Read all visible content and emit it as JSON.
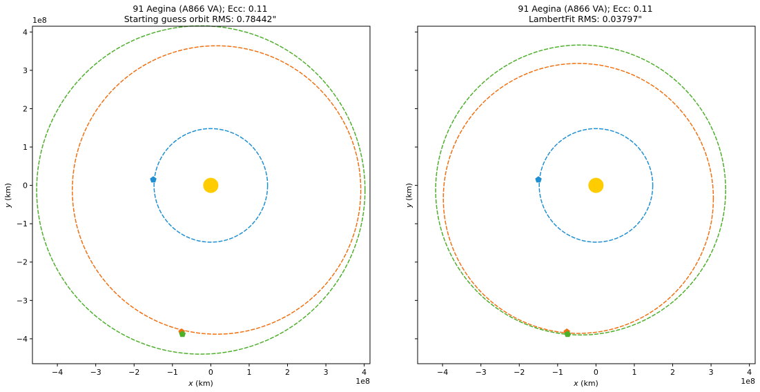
{
  "chart_data": [
    {
      "type": "scatter",
      "title": "91 Aegina (A866 VA); Ecc: 0.11",
      "subtitle": "Starting guess orbit RMS: 0.78442\"",
      "xlabel_var": "x",
      "xlabel_unit": " (km)",
      "ylabel_var": "y",
      "ylabel_unit": " (km)",
      "x_scale_label": "1e8",
      "y_scale_label": "1e8",
      "xlim": [
        -4.65,
        4.15
      ],
      "ylim": [
        -4.65,
        4.15
      ],
      "xticks": [
        -4,
        -3,
        -2,
        -1,
        0,
        1,
        2,
        3,
        4
      ],
      "yticks": [
        -4,
        -3,
        -2,
        -1,
        0,
        1,
        2,
        3,
        4
      ],
      "xtick_labels": [
        "−4",
        "−3",
        "−2",
        "−1",
        "0",
        "1",
        "2",
        "3",
        "4"
      ],
      "ytick_labels": [
        "−4",
        "−3",
        "−2",
        "−1",
        "0",
        "1",
        "2",
        "3",
        "4"
      ],
      "show_ytick_labels": true,
      "grid": false,
      "sun": {
        "x": 0,
        "y": 0,
        "color": "#ffcc00"
      },
      "orbits": [
        {
          "cx": 0,
          "cy": 0,
          "rx": 1.48,
          "ry": 1.48,
          "color": "#1f8fd1",
          "dash": "6,2"
        },
        {
          "cx": -0.26,
          "cy": -0.12,
          "rx": 4.28,
          "ry": 4.28,
          "color": "#4daf2a",
          "dash": "6,2"
        },
        {
          "cx": 0.15,
          "cy": -0.12,
          "rx": 3.76,
          "ry": 3.76,
          "color": "#f07012",
          "dash": "6,2"
        }
      ],
      "markers": [
        {
          "x": -1.5,
          "y": 0.15,
          "color": "#1f8fd1"
        },
        {
          "x": -0.76,
          "y": -3.82,
          "color": "#f07012"
        },
        {
          "x": -0.74,
          "y": -3.88,
          "color": "#4daf2a"
        }
      ]
    },
    {
      "type": "scatter",
      "title": "91 Aegina (A866 VA); Ecc: 0.11",
      "subtitle": "LambertFit RMS: 0.03797\"",
      "xlabel_var": "x",
      "xlabel_unit": " (km)",
      "ylabel_var": "y",
      "ylabel_unit": " (km)",
      "x_scale_label": "1e8",
      "y_scale_label": "",
      "xlim": [
        -4.65,
        4.15
      ],
      "ylim": [
        -4.65,
        4.15
      ],
      "xticks": [
        -4,
        -3,
        -2,
        -1,
        0,
        1,
        2,
        3,
        4
      ],
      "yticks": [
        -4,
        -3,
        -2,
        -1,
        0,
        1,
        2,
        3,
        4
      ],
      "xtick_labels": [
        "−4",
        "−3",
        "−2",
        "−1",
        "0",
        "1",
        "2",
        "3",
        "4"
      ],
      "ytick_labels": [],
      "show_ytick_labels": false,
      "grid": false,
      "sun": {
        "x": 0,
        "y": 0,
        "color": "#ffcc00"
      },
      "orbits": [
        {
          "cx": 0,
          "cy": 0,
          "rx": 1.48,
          "ry": 1.48,
          "color": "#1f8fd1",
          "dash": "6,2"
        },
        {
          "cx": -0.4,
          "cy": -0.12,
          "rx": 3.78,
          "ry": 3.78,
          "color": "#4daf2a",
          "dash": "6,2"
        },
        {
          "cx": -0.46,
          "cy": -0.34,
          "rx": 3.52,
          "ry": 3.52,
          "color": "#f07012",
          "dash": "6,2"
        }
      ],
      "markers": [
        {
          "x": -1.5,
          "y": 0.15,
          "color": "#1f8fd1"
        },
        {
          "x": -0.76,
          "y": -3.82,
          "color": "#f07012"
        },
        {
          "x": -0.74,
          "y": -3.88,
          "color": "#4daf2a"
        }
      ]
    }
  ]
}
